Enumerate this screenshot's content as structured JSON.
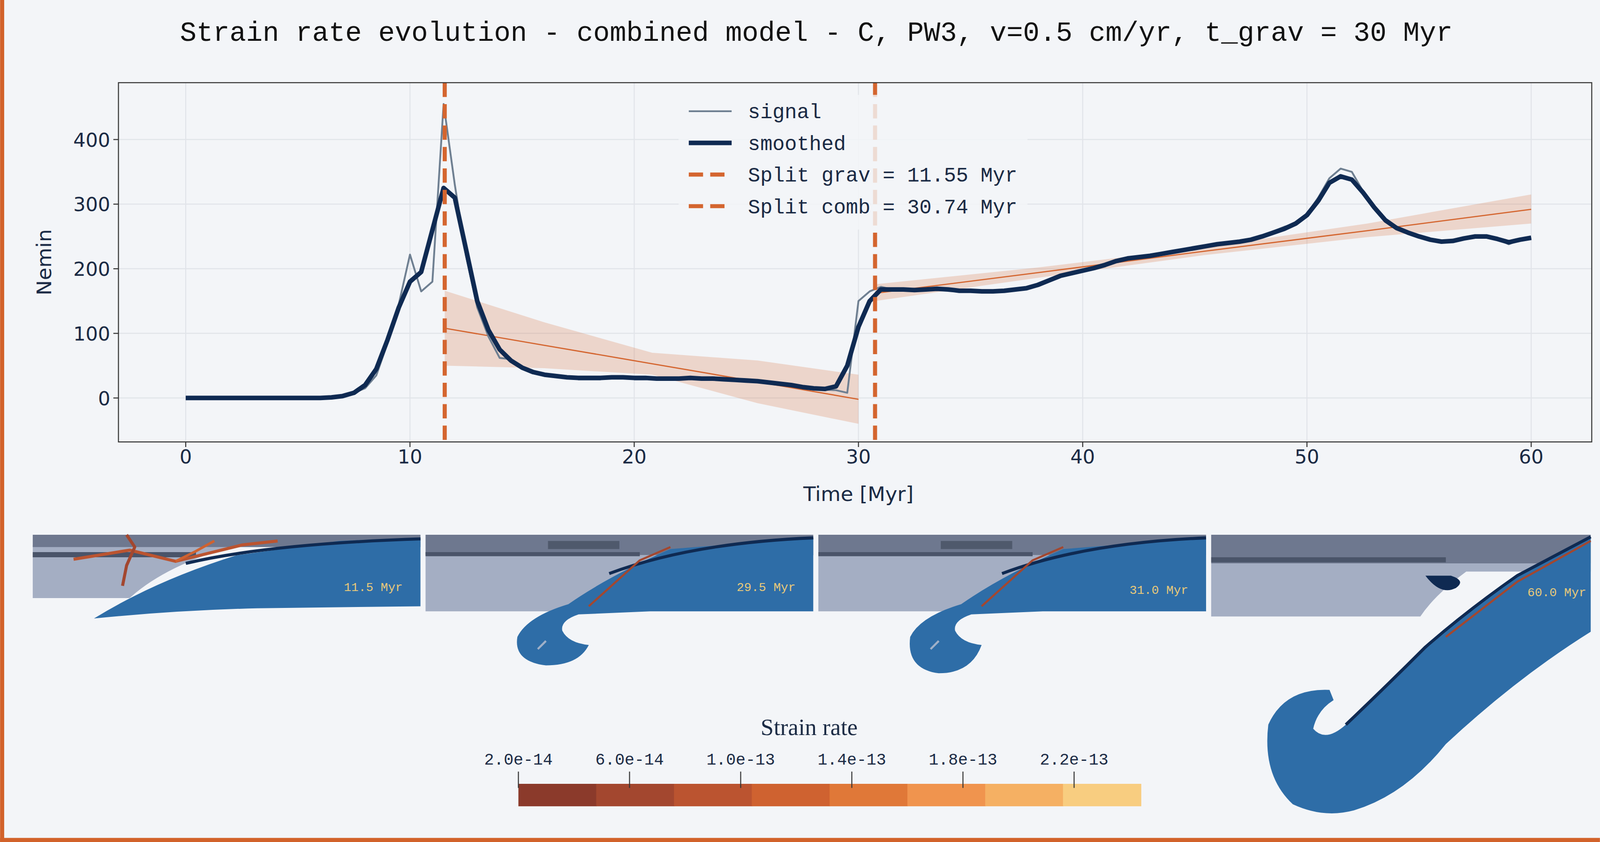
{
  "chart_data": {
    "type": "line",
    "title": "Strain rate evolution - combined model - C, PW3, v=0.5 cm/yr, t_grav = 30 Myr",
    "x_label": "Time [Myr]",
    "y_label": "Nemin",
    "x": [
      0,
      0.5,
      1,
      1.5,
      2,
      2.5,
      3,
      3.5,
      4,
      4.5,
      5,
      5.5,
      6,
      6.5,
      7,
      7.5,
      8,
      8.5,
      9,
      9.5,
      10,
      10.5,
      11,
      11.5,
      12,
      12.5,
      13,
      13.5,
      14,
      14.5,
      15,
      15.5,
      16,
      16.5,
      17,
      17.5,
      18,
      18.5,
      19,
      19.5,
      20,
      20.5,
      21,
      21.5,
      22,
      22.5,
      23,
      23.5,
      24,
      24.5,
      25,
      25.5,
      26,
      26.5,
      27,
      27.5,
      28,
      28.5,
      29,
      29.5,
      30,
      30.5,
      31,
      31.5,
      32,
      32.5,
      33,
      33.5,
      34,
      34.5,
      35,
      35.5,
      36,
      36.5,
      37,
      37.5,
      38,
      38.5,
      39,
      39.5,
      40,
      40.5,
      41,
      41.5,
      42,
      42.5,
      43,
      43.5,
      44,
      44.5,
      45,
      45.5,
      46,
      46.5,
      47,
      47.5,
      48,
      48.5,
      49,
      49.5,
      50,
      50.5,
      51,
      51.5,
      52,
      52.5,
      53,
      53.5,
      54,
      54.5,
      55,
      55.5,
      56,
      56.5,
      57,
      57.5,
      58,
      58.5,
      59,
      59.5,
      60
    ],
    "series": [
      {
        "name": "signal",
        "color": "#6e7f91",
        "values": [
          0,
          0,
          0,
          0,
          0,
          0,
          0,
          0,
          0,
          0,
          0,
          0,
          0,
          1,
          3,
          8,
          15,
          35,
          85,
          145,
          222,
          165,
          180,
          455,
          330,
          220,
          140,
          95,
          62,
          60,
          45,
          40,
          36,
          34,
          32,
          31,
          31,
          31,
          32,
          32,
          31,
          31,
          30,
          30,
          30,
          31,
          30,
          30,
          29,
          28,
          27,
          26,
          24,
          22,
          20,
          17,
          15,
          13,
          12,
          8,
          150,
          165,
          172,
          168,
          168,
          167,
          168,
          169,
          168,
          166,
          166,
          165,
          165,
          166,
          168,
          170,
          173,
          182,
          189,
          193,
          197,
          201,
          206,
          212,
          216,
          218,
          220,
          223,
          227,
          229,
          232,
          235,
          238,
          240,
          242,
          245,
          250,
          258,
          265,
          270,
          285,
          310,
          340,
          355,
          350,
          320,
          295,
          275,
          263,
          256,
          250,
          245,
          242,
          243,
          247,
          250,
          250,
          246,
          238,
          245,
          248
        ]
      },
      {
        "name": "smoothed",
        "color": "#0f2a52",
        "values": [
          0,
          0,
          0,
          0,
          0,
          0,
          0,
          0,
          0,
          0,
          0,
          0,
          0,
          1,
          3,
          8,
          20,
          45,
          90,
          140,
          180,
          195,
          260,
          325,
          310,
          230,
          150,
          105,
          75,
          58,
          47,
          40,
          36,
          34,
          32,
          31,
          31,
          31,
          32,
          32,
          31,
          31,
          30,
          30,
          30,
          31,
          30,
          30,
          29,
          28,
          27,
          26,
          24,
          22,
          20,
          17,
          15,
          14,
          18,
          50,
          110,
          150,
          168,
          168,
          168,
          167,
          168,
          169,
          168,
          166,
          166,
          165,
          165,
          166,
          168,
          170,
          175,
          182,
          189,
          193,
          197,
          201,
          206,
          212,
          216,
          218,
          220,
          223,
          226,
          229,
          232,
          235,
          238,
          240,
          242,
          245,
          250,
          256,
          262,
          270,
          283,
          305,
          333,
          343,
          338,
          318,
          295,
          275,
          263,
          256,
          250,
          245,
          242,
          243,
          247,
          250,
          250,
          246,
          241,
          245,
          248
        ]
      }
    ],
    "fits": [
      {
        "x": [
          11.55,
          16,
          20.8,
          25.5,
          30
        ],
        "values": [
          108,
          81.5,
          53,
          25,
          -2
        ],
        "lower": [
          50,
          46,
          36,
          -8,
          -40
        ],
        "upper": [
          166,
          117,
          70,
          58,
          36
        ],
        "color": "#d4652f"
      },
      {
        "x": [
          30.74,
          38,
          45.4,
          52.7,
          60
        ],
        "values": [
          162,
          194,
          227,
          259,
          292
        ],
        "lower": [
          150,
          186,
          221,
          249,
          270
        ],
        "upper": [
          176,
          202,
          233,
          270,
          315
        ],
        "color": "#d4652f"
      }
    ],
    "vlines": [
      {
        "name": "Split grav = 11.55 Myr",
        "x": 11.55,
        "color": "#d4652f",
        "line_style": "dashed"
      },
      {
        "name": "Split comb = 30.74 Myr",
        "x": 30.74,
        "color": "#d4652f",
        "line_style": "dashed"
      }
    ],
    "xlim": [
      -3,
      62.7
    ],
    "ylim": [
      -68,
      488
    ],
    "xticks": [
      0,
      10,
      20,
      30,
      40,
      50,
      60
    ],
    "yticks": [
      0,
      100,
      200,
      300,
      400
    ],
    "grid": true,
    "legend": "top"
  },
  "snapshots": [
    {
      "label": "11.5 Myr"
    },
    {
      "label": "29.5 Myr"
    },
    {
      "label": "31.0 Myr"
    },
    {
      "label": "60.0 Myr"
    }
  ],
  "colorbar": {
    "title": "Strain rate",
    "range": [
      2e-14,
      2.44e-13
    ],
    "ticks": [
      {
        "value": 2e-14,
        "label": "2.0e-14"
      },
      {
        "value": 6e-14,
        "label": "6.0e-14"
      },
      {
        "value": 1e-13,
        "label": "1.0e-13"
      },
      {
        "value": 1.4e-13,
        "label": "1.4e-13"
      },
      {
        "value": 1.8e-13,
        "label": "1.8e-13"
      },
      {
        "value": 2.2e-13,
        "label": "2.2e-13"
      }
    ],
    "colors": [
      "#8b3a2b",
      "#a3472f",
      "#bb5430",
      "#cf6230",
      "#e07838",
      "#f0944e",
      "#f5b063",
      "#f8cd80"
    ]
  }
}
